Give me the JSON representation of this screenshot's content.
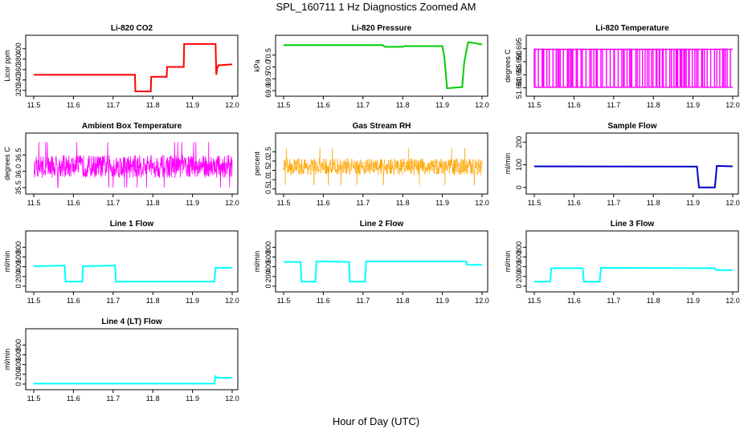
{
  "page": {
    "title": "SPL_160711  1 Hz Diagnostics Zoomed AM",
    "x_caption": "Hour of Day (UTC)"
  },
  "chart_data": [
    {
      "id": "co2",
      "type": "line",
      "title": "Li-820 CO2",
      "ylabel": "Licor ppm",
      "color": "#ff0000",
      "xlim": [
        11.5,
        12.0
      ],
      "xticks": [
        11.5,
        11.6,
        11.7,
        11.8,
        11.9,
        12.0
      ],
      "ylim": [
        315,
        415
      ],
      "yticks": [
        320,
        340,
        360,
        380,
        400
      ],
      "series": [
        {
          "x": [
            11.5,
            11.755,
            11.756,
            11.795,
            11.796,
            11.835,
            11.836,
            11.878,
            11.879,
            11.958,
            11.96,
            11.962,
            11.965,
            12.0
          ],
          "y": [
            350,
            350,
            318,
            318,
            346,
            346,
            365,
            365,
            409,
            409,
            350,
            362,
            368,
            370
          ]
        }
      ]
    },
    {
      "id": "pressure",
      "type": "line",
      "title": "Li-820 Pressure",
      "ylabel": "kPa",
      "color": "#00cc00",
      "xlim": [
        11.5,
        12.0
      ],
      "xticks": [
        11.5,
        11.6,
        11.7,
        11.8,
        11.9,
        12.0
      ],
      "ylim": [
        68.9,
        71.1
      ],
      "yticks": [
        69.0,
        69.5,
        70.0,
        70.5
      ],
      "series": [
        {
          "x": [
            11.5,
            11.75,
            11.755,
            11.8,
            11.805,
            11.9,
            11.905,
            11.912,
            11.95,
            11.955,
            11.965,
            12.0
          ],
          "y": [
            70.92,
            70.92,
            70.85,
            70.85,
            70.88,
            70.88,
            70.4,
            69.1,
            69.15,
            70.2,
            71.05,
            70.95
          ]
        }
      ]
    },
    {
      "id": "temperature",
      "type": "line",
      "title": "Li-820 Temperature",
      "ylabel": "degrees C",
      "color": "#ff00ff",
      "xlim": [
        11.5,
        12.0
      ],
      "xticks": [
        11.5,
        11.6,
        11.7,
        11.8,
        11.9,
        12.0
      ],
      "ylim": [
        51.678,
        51.698
      ],
      "yticks": [
        51.68,
        51.685,
        51.69,
        51.695
      ],
      "series": [
        {
          "x": [
            11.5,
            12.0
          ],
          "y": [
            51.678,
            51.698
          ]
        }
      ]
    },
    {
      "id": "ambient",
      "type": "line",
      "title": "Ambient Box Temperature",
      "ylabel": "degrees C",
      "color": "#ff00ff",
      "xlim": [
        11.5,
        12.0
      ],
      "xticks": [
        11.5,
        11.6,
        11.7,
        11.8,
        11.9,
        12.0
      ],
      "ylim": [
        35.4,
        37.0
      ],
      "yticks": [
        35.5,
        36.0,
        36.5
      ],
      "series": [
        {
          "x": [
            11.5,
            12.0
          ],
          "y": [
            35.5,
            36.9
          ]
        }
      ]
    },
    {
      "id": "rh",
      "type": "line",
      "title": "Gas Stream RH",
      "ylabel": "percent",
      "color": "#ffa500",
      "xlim": [
        11.5,
        12.0
      ],
      "xticks": [
        11.5,
        11.6,
        11.7,
        11.8,
        11.9,
        12.0
      ],
      "ylim": [
        0.4,
        3.2
      ],
      "yticks": [
        0.5,
        1.0,
        1.5,
        2.0,
        2.5
      ],
      "series": [
        {
          "x": [
            11.5,
            12.0
          ],
          "y": [
            0.6,
            3.0
          ]
        }
      ]
    },
    {
      "id": "sample",
      "type": "line",
      "title": "Sample Flow",
      "ylabel": "ml/min",
      "color": "#0000cc",
      "xlim": [
        11.5,
        12.0
      ],
      "xticks": [
        11.5,
        11.6,
        11.7,
        11.8,
        11.9,
        12.0
      ],
      "ylim": [
        -15,
        215
      ],
      "yticks": [
        0,
        100,
        200
      ],
      "series": [
        {
          "x": [
            11.5,
            11.91,
            11.915,
            11.955,
            11.96,
            12.0
          ],
          "y": [
            93,
            92,
            0,
            0,
            95,
            93
          ]
        }
      ]
    },
    {
      "id": "line1",
      "type": "line",
      "title": "Line 1 Flow",
      "ylabel": "ml/min",
      "color": "#00ffff",
      "xlim": [
        11.5,
        12.0
      ],
      "xticks": [
        11.5,
        11.6,
        11.7,
        11.8,
        11.9,
        12.0
      ],
      "ylim": [
        -50,
        1020
      ],
      "yticks": [
        0,
        200,
        400,
        600,
        800
      ],
      "series": [
        {
          "x": [
            11.5,
            11.578,
            11.58,
            11.622,
            11.624,
            11.705,
            11.707,
            11.955,
            11.958,
            12.0
          ],
          "y": [
            410,
            425,
            95,
            95,
            410,
            425,
            95,
            95,
            380,
            380
          ]
        }
      ]
    },
    {
      "id": "line2",
      "type": "line",
      "title": "Line 2 Flow",
      "ylabel": "ml/min",
      "color": "#00ffff",
      "xlim": [
        11.5,
        12.0
      ],
      "xticks": [
        11.5,
        11.6,
        11.7,
        11.8,
        11.9,
        12.0
      ],
      "ylim": [
        -50,
        1020
      ],
      "yticks": [
        0,
        200,
        400,
        600,
        800
      ],
      "series": [
        {
          "x": [
            11.5,
            11.543,
            11.545,
            11.58,
            11.583,
            11.665,
            11.667,
            11.705,
            11.708,
            11.96,
            11.962,
            12.0
          ],
          "y": [
            500,
            500,
            95,
            95,
            510,
            500,
            95,
            95,
            510,
            510,
            440,
            440
          ]
        }
      ]
    },
    {
      "id": "line3",
      "type": "line",
      "title": "Line 3 Flow",
      "ylabel": "ml/min",
      "color": "#00ffff",
      "xlim": [
        11.5,
        12.0
      ],
      "xticks": [
        11.5,
        11.6,
        11.7,
        11.8,
        11.9,
        12.0
      ],
      "ylim": [
        -50,
        1020
      ],
      "yticks": [
        0,
        200,
        400,
        600,
        800
      ],
      "series": [
        {
          "x": [
            11.5,
            11.54,
            11.543,
            11.622,
            11.625,
            11.665,
            11.668,
            11.955,
            11.958,
            12.0
          ],
          "y": [
            95,
            95,
            370,
            370,
            95,
            95,
            380,
            370,
            330,
            330
          ]
        }
      ]
    },
    {
      "id": "line4",
      "type": "line",
      "title": "Line 4 (LT) Flow",
      "ylabel": "ml/min",
      "color": "#00ffff",
      "xlim": [
        11.5,
        12.0
      ],
      "xticks": [
        11.5,
        11.6,
        11.7,
        11.8,
        11.9,
        12.0
      ],
      "ylim": [
        -50,
        1020
      ],
      "yticks": [
        0,
        200,
        400,
        600,
        800
      ],
      "series": [
        {
          "x": [
            11.5,
            11.955,
            11.958,
            11.962,
            12.0
          ],
          "y": [
            10,
            10,
            160,
            130,
            130
          ]
        }
      ]
    }
  ]
}
